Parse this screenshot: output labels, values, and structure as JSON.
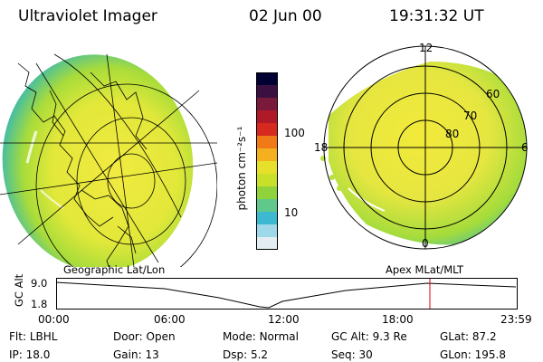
{
  "header": {
    "title": "Ultraviolet Imager",
    "date": "02 Jun 00",
    "time": "19:31:32 UT"
  },
  "colorbar": {
    "unit_label": "photon cm⁻²s⁻¹",
    "ticks": [
      "100",
      "10"
    ],
    "colors": [
      "#000033",
      "#3a1040",
      "#7a1a3a",
      "#b01a28",
      "#d62a20",
      "#f07a18",
      "#f5b020",
      "#e6e02a",
      "#c8e02a",
      "#8fd23a",
      "#5fc88a",
      "#3cb8d0",
      "#9fd8e8",
      "#e4eef2"
    ]
  },
  "polar_plot": {
    "labels": {
      "top": "12",
      "left": "18",
      "right": "6",
      "bottom": "0"
    },
    "lat_labels": [
      "60",
      "70",
      "80"
    ]
  },
  "panel_labels": {
    "left": "Geographic Lat/Lon",
    "right": "Apex MLat/MLT"
  },
  "alt_plot": {
    "axis_label": "GC Alt",
    "y_ticks": [
      "9.0",
      "1.8"
    ],
    "x_ticks": [
      "00:00",
      "06:00",
      "12:00",
      "18:00",
      "23:59"
    ]
  },
  "info": {
    "row1": [
      {
        "key": "Flt:",
        "value": "LBHL"
      },
      {
        "key": "Door:",
        "value": "Open"
      },
      {
        "key": "Mode:",
        "value": "Normal"
      },
      {
        "key": "GC Alt:",
        "value": "9.3 Re"
      },
      {
        "key": "GLat:",
        "value": "87.2"
      }
    ],
    "row2": [
      {
        "key": "IP:",
        "value": "18.0"
      },
      {
        "key": "Gain:",
        "value": "13"
      },
      {
        "key": "Dsp:",
        "value": "5.2"
      },
      {
        "key": "Seq:",
        "value": "30"
      },
      {
        "key": "GLon:",
        "value": "195.8"
      }
    ]
  }
}
